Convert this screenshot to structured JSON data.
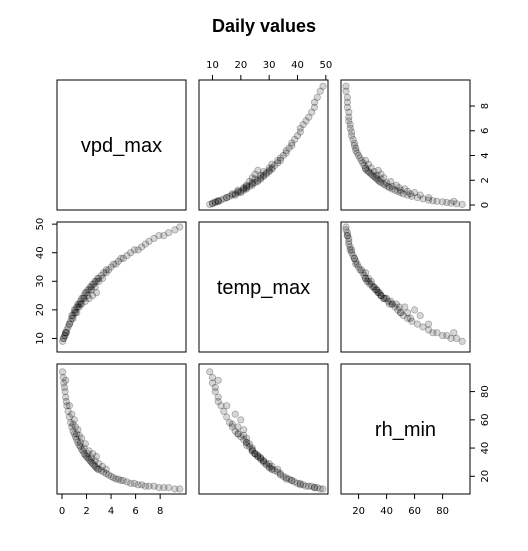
{
  "chart_data": {
    "type": "scatter",
    "title": "Daily values",
    "variables": [
      "vpd_max",
      "temp_max",
      "rh_min"
    ],
    "ranges": {
      "vpd_max": [
        0.0,
        9.7
      ],
      "temp_max": [
        7,
        49
      ],
      "rh_min": [
        11,
        96
      ]
    },
    "ticks": {
      "vpd_max": [
        "0",
        "2",
        "4",
        "6",
        "8"
      ],
      "temp_max": [
        "10",
        "20",
        "30",
        "40",
        "50"
      ],
      "rh_min": [
        "20",
        "40",
        "60",
        "80"
      ]
    },
    "points": {
      "vpd_max": [
        0.05,
        0.1,
        0.15,
        0.2,
        0.25,
        0.3,
        0.35,
        0.4,
        0.5,
        0.6,
        0.7,
        0.8,
        0.9,
        1.0,
        1.1,
        1.2,
        1.3,
        1.4,
        1.5,
        1.6,
        1.7,
        1.8,
        1.9,
        2.0,
        2.1,
        2.2,
        2.3,
        2.4,
        2.5,
        2.6,
        2.7,
        2.8,
        2.9,
        3.0,
        3.2,
        3.4,
        3.6,
        3.8,
        4.0,
        4.2,
        4.4,
        4.6,
        4.8,
        5.0,
        5.3,
        5.6,
        5.9,
        6.2,
        6.5,
        6.8,
        7.1,
        7.5,
        7.9,
        8.3,
        8.7,
        9.2,
        9.6,
        0.3,
        0.6,
        0.9,
        1.2,
        1.5,
        1.8,
        2.1,
        2.4,
        2.7,
        3.0,
        3.3,
        3.6,
        1.0,
        1.3,
        1.6,
        1.9,
        2.2,
        2.5,
        2.8,
        0.8,
        1.1,
        1.4
      ],
      "temp_max": [
        9,
        10,
        10,
        11,
        11,
        12,
        12,
        13,
        14,
        15,
        16,
        17,
        18,
        19,
        20,
        21,
        22,
        22,
        23,
        24,
        24,
        25,
        26,
        26,
        27,
        27,
        28,
        28,
        29,
        29,
        30,
        30,
        31,
        31,
        32,
        33,
        34,
        34,
        35,
        36,
        36,
        37,
        38,
        38,
        39,
        40,
        41,
        41,
        42,
        43,
        44,
        45,
        46,
        46,
        47,
        48,
        49,
        12,
        15,
        17,
        19,
        22,
        24,
        25,
        27,
        28,
        30,
        31,
        33,
        20,
        21,
        22,
        23,
        24,
        25,
        26,
        18,
        19,
        21
      ],
      "rh_min": [
        94,
        90,
        86,
        83,
        80,
        76,
        73,
        70,
        66,
        62,
        58,
        55,
        52,
        50,
        48,
        46,
        44,
        42,
        41,
        39,
        38,
        36,
        35,
        34,
        33,
        32,
        31,
        30,
        29,
        28,
        27,
        26,
        25,
        25,
        24,
        23,
        22,
        21,
        20,
        19,
        18,
        18,
        17,
        17,
        16,
        15,
        15,
        14,
        14,
        13,
        13,
        13,
        12,
        12,
        12,
        11,
        11,
        88,
        70,
        57,
        50,
        44,
        40,
        36,
        33,
        31,
        29,
        27,
        25,
        60,
        53,
        47,
        43,
        38,
        36,
        34,
        64,
        55,
        49
      ]
    }
  }
}
